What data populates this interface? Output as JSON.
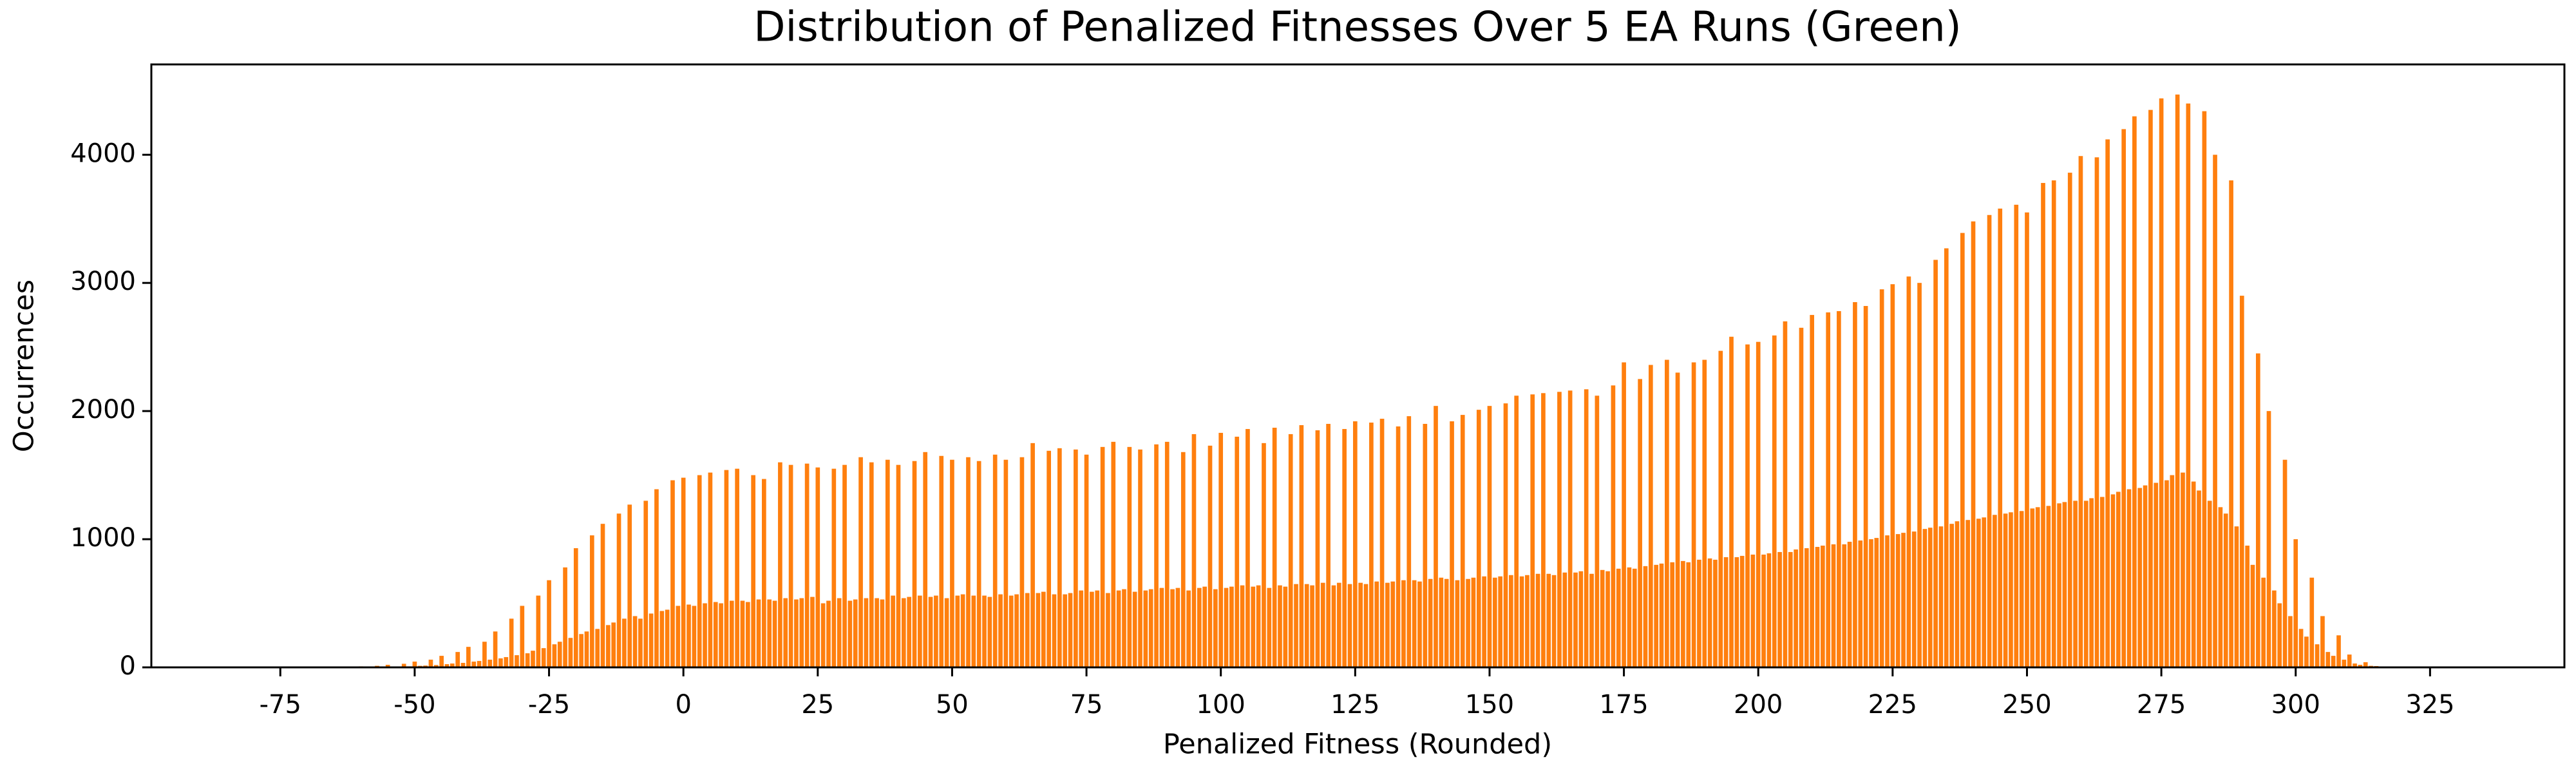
{
  "chart_data": {
    "type": "bar",
    "title": "Distribution of Penalized Fitnesses Over 5 EA Runs (Green)",
    "x_label": "Penalized Fitness (Rounded)",
    "y_label": "Occurrences",
    "color": "#ff7f0e",
    "xlim": [
      -99,
      350
    ],
    "ylim": [
      0,
      4705
    ],
    "xticks": [
      -75,
      -50,
      -25,
      0,
      25,
      50,
      75,
      100,
      125,
      150,
      175,
      200,
      225,
      250,
      275,
      300,
      325
    ],
    "yticks": [
      0,
      1000,
      2000,
      3000,
      4000
    ],
    "x": [
      -60,
      -59,
      -58,
      -57,
      -56,
      -55,
      -54,
      -53,
      -52,
      -51,
      -50,
      -49,
      -48,
      -47,
      -46,
      -45,
      -44,
      -43,
      -42,
      -41,
      -40,
      -39,
      -38,
      -37,
      -36,
      -35,
      -34,
      -33,
      -32,
      -31,
      -30,
      -29,
      -28,
      -27,
      -26,
      -25,
      -24,
      -23,
      -22,
      -21,
      -20,
      -19,
      -18,
      -17,
      -16,
      -15,
      -14,
      -13,
      -12,
      -11,
      -10,
      -9,
      -8,
      -7,
      -6,
      -5,
      -4,
      -3,
      -2,
      -1,
      0,
      1,
      2,
      3,
      4,
      5,
      6,
      7,
      8,
      9,
      10,
      11,
      12,
      13,
      14,
      15,
      16,
      17,
      18,
      19,
      20,
      21,
      22,
      23,
      24,
      25,
      26,
      27,
      28,
      29,
      30,
      31,
      32,
      33,
      34,
      35,
      36,
      37,
      38,
      39,
      40,
      41,
      42,
      43,
      44,
      45,
      46,
      47,
      48,
      49,
      50,
      51,
      52,
      53,
      54,
      55,
      56,
      57,
      58,
      59,
      60,
      61,
      62,
      63,
      64,
      65,
      66,
      67,
      68,
      69,
      70,
      71,
      72,
      73,
      74,
      75,
      76,
      77,
      78,
      79,
      80,
      81,
      82,
      83,
      84,
      85,
      86,
      87,
      88,
      89,
      90,
      91,
      92,
      93,
      94,
      95,
      96,
      97,
      98,
      99,
      100,
      101,
      102,
      103,
      104,
      105,
      106,
      107,
      108,
      109,
      110,
      111,
      112,
      113,
      114,
      115,
      116,
      117,
      118,
      119,
      120,
      121,
      122,
      123,
      124,
      125,
      126,
      127,
      128,
      129,
      130,
      131,
      132,
      133,
      134,
      135,
      136,
      137,
      138,
      139,
      140,
      141,
      142,
      143,
      144,
      145,
      146,
      147,
      148,
      149,
      150,
      151,
      152,
      153,
      154,
      155,
      156,
      157,
      158,
      159,
      160,
      161,
      162,
      163,
      164,
      165,
      166,
      167,
      168,
      169,
      170,
      171,
      172,
      173,
      174,
      175,
      176,
      177,
      178,
      179,
      180,
      181,
      182,
      183,
      184,
      185,
      186,
      187,
      188,
      189,
      190,
      191,
      192,
      193,
      194,
      195,
      196,
      197,
      198,
      199,
      200,
      201,
      202,
      203,
      204,
      205,
      206,
      207,
      208,
      209,
      210,
      211,
      212,
      213,
      214,
      215,
      216,
      217,
      218,
      219,
      220,
      221,
      222,
      223,
      224,
      225,
      226,
      227,
      228,
      229,
      230,
      231,
      232,
      233,
      234,
      235,
      236,
      237,
      238,
      239,
      240,
      241,
      242,
      243,
      244,
      245,
      246,
      247,
      248,
      249,
      250,
      251,
      252,
      253,
      254,
      255,
      256,
      257,
      258,
      259,
      260,
      261,
      262,
      263,
      264,
      265,
      266,
      267,
      268,
      269,
      270,
      271,
      272,
      273,
      274,
      275,
      276,
      277,
      278,
      279,
      280,
      281,
      282,
      283,
      284,
      285,
      286,
      287,
      288,
      289,
      290,
      291,
      292,
      293,
      294,
      295,
      296,
      297,
      298,
      299,
      300,
      301,
      302,
      303,
      304,
      305,
      306,
      307,
      308,
      309,
      310,
      311,
      312,
      313,
      314,
      315,
      316
    ],
    "values": [
      8,
      2,
      3,
      12,
      4,
      20,
      5,
      6,
      28,
      8,
      45,
      12,
      14,
      60,
      18,
      90,
      25,
      30,
      120,
      35,
      160,
      45,
      50,
      200,
      60,
      280,
      70,
      80,
      380,
      95,
      480,
      110,
      130,
      560,
      150,
      680,
      180,
      200,
      780,
      230,
      930,
      260,
      280,
      1030,
      300,
      1120,
      330,
      350,
      1200,
      380,
      1270,
      400,
      380,
      1300,
      420,
      1390,
      440,
      450,
      1460,
      480,
      1480,
      490,
      480,
      1500,
      500,
      1520,
      510,
      500,
      1540,
      520,
      1550,
      520,
      510,
      1500,
      530,
      1470,
      530,
      520,
      1600,
      540,
      1580,
      530,
      540,
      1590,
      550,
      1560,
      500,
      520,
      1550,
      540,
      1580,
      520,
      530,
      1640,
      540,
      1600,
      540,
      530,
      1620,
      560,
      1580,
      540,
      550,
      1610,
      560,
      1680,
      550,
      560,
      1650,
      540,
      1620,
      560,
      570,
      1640,
      560,
      1610,
      560,
      550,
      1660,
      570,
      1620,
      560,
      570,
      1640,
      580,
      1750,
      580,
      590,
      1690,
      570,
      1710,
      570,
      580,
      1700,
      600,
      1660,
      590,
      600,
      1720,
      580,
      1760,
      600,
      610,
      1720,
      590,
      1700,
      600,
      610,
      1740,
      620,
      1760,
      610,
      620,
      1680,
      600,
      1820,
      620,
      630,
      1730,
      610,
      1830,
      620,
      630,
      1800,
      640,
      1860,
      630,
      640,
      1750,
      620,
      1870,
      640,
      630,
      1820,
      650,
      1890,
      650,
      640,
      1850,
      660,
      1900,
      640,
      660,
      1860,
      650,
      1920,
      660,
      650,
      1910,
      670,
      1940,
      660,
      670,
      1880,
      680,
      1960,
      680,
      670,
      1900,
      690,
      2040,
      700,
      690,
      1920,
      680,
      1970,
      690,
      700,
      2010,
      710,
      2040,
      700,
      710,
      2060,
      720,
      2120,
      710,
      720,
      2130,
      730,
      2140,
      730,
      720,
      2150,
      740,
      2160,
      740,
      750,
      2170,
      730,
      2120,
      760,
      750,
      2200,
      770,
      2380,
      780,
      770,
      2250,
      790,
      2360,
      800,
      810,
      2400,
      820,
      2300,
      830,
      820,
      2380,
      840,
      2400,
      850,
      840,
      2470,
      860,
      2580,
      860,
      870,
      2520,
      880,
      2540,
      880,
      890,
      2590,
      900,
      2700,
      900,
      920,
      2650,
      930,
      2750,
      940,
      950,
      2770,
      960,
      2780,
      960,
      980,
      2850,
      990,
      2820,
      1000,
      1010,
      2950,
      1030,
      2990,
      1040,
      1050,
      3050,
      1060,
      3000,
      1080,
      1090,
      3180,
      1100,
      3270,
      1120,
      1140,
      3390,
      1150,
      3480,
      1160,
      1170,
      3530,
      1190,
      3580,
      1200,
      1210,
      3610,
      1220,
      3550,
      1240,
      1250,
      3780,
      1260,
      3800,
      1280,
      1290,
      3860,
      1300,
      3990,
      1300,
      1320,
      3980,
      1330,
      4120,
      1350,
      1370,
      4200,
      1390,
      4300,
      1400,
      1420,
      4350,
      1440,
      4440,
      1460,
      1500,
      4470,
      1520,
      4400,
      1450,
      1380,
      4340,
      1300,
      4000,
      1250,
      1200,
      3800,
      1100,
      2900,
      950,
      800,
      2450,
      700,
      2000,
      600,
      500,
      1620,
      400,
      1000,
      300,
      240,
      700,
      180,
      400,
      120,
      90,
      250,
      60,
      100,
      30,
      20,
      40,
      12,
      10,
      5
    ]
  }
}
